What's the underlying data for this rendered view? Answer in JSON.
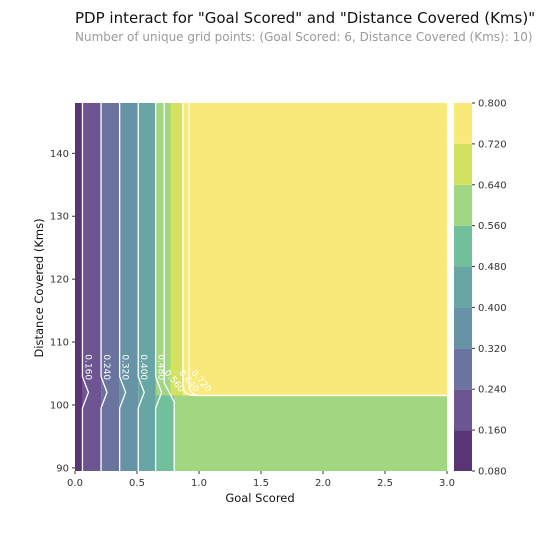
{
  "title": "PDP interact for \"Goal Scored\" and \"Distance Covered (Kms)\"",
  "subtitle": "Number of unique grid points: (Goal Scored: 6, Distance Covered (Kms): 10)",
  "chart_data": {
    "type": "heatmap",
    "subtype": "filled-contour",
    "xlabel": "Goal Scored",
    "ylabel": "Distance Covered (Kms)",
    "xlim": [
      0.0,
      3.0
    ],
    "ylim": [
      89.5,
      148
    ],
    "xticks": [
      "0.0",
      "0.5",
      "1.0",
      "1.5",
      "2.0",
      "2.5",
      "3.0"
    ],
    "xtick_values": [
      0.0,
      0.5,
      1.0,
      1.5,
      2.0,
      2.5,
      3.0
    ],
    "yticks": [
      "90",
      "100",
      "110",
      "120",
      "130",
      "140"
    ],
    "ytick_values": [
      90,
      100,
      110,
      120,
      130,
      140
    ],
    "colorbar": {
      "levels": [
        0.08,
        0.16,
        0.24,
        0.32,
        0.4,
        0.48,
        0.56,
        0.64,
        0.72,
        0.8
      ],
      "tick_labels": [
        "0.080",
        "0.160",
        "0.240",
        "0.320",
        "0.400",
        "0.480",
        "0.560",
        "0.640",
        "0.720",
        "0.800"
      ],
      "colors": [
        "#5a3576",
        "#6d5591",
        "#6b749f",
        "#6793a7",
        "#67a6a5",
        "#72bf9c",
        "#a2d781",
        "#d4e261",
        "#f9e979"
      ]
    },
    "contour_bands": [
      {
        "range": [
          0.08,
          0.16
        ],
        "x_from": 0.0,
        "x_to": 0.06
      },
      {
        "range": [
          0.16,
          0.24
        ],
        "x_from": 0.06,
        "x_to": 0.21
      },
      {
        "range": [
          0.24,
          0.32
        ],
        "x_from": 0.21,
        "x_to": 0.36
      },
      {
        "range": [
          0.32,
          0.4
        ],
        "x_from": 0.36,
        "x_to": 0.51
      },
      {
        "range": [
          0.4,
          0.48
        ],
        "x_from": 0.51,
        "x_to": 0.65
      },
      {
        "range": [
          0.48,
          0.56
        ],
        "x_from": 0.65,
        "x_to": 0.8
      },
      {
        "range": [
          0.56,
          0.64
        ],
        "x_from": 0.8,
        "x_to": 3.0,
        "y_to": 101.5
      },
      {
        "range": [
          0.56,
          0.64
        ],
        "x_from": 0.65,
        "x_to": 0.77,
        "y_from": 101.5
      },
      {
        "range": [
          0.64,
          0.72
        ],
        "x_from": 0.77,
        "x_to": 0.87,
        "y_from": 101.5
      },
      {
        "range": [
          0.72,
          0.8
        ],
        "x_from": 0.87,
        "x_to": 3.0,
        "y_from": 101.5
      }
    ],
    "contour_lines": [
      {
        "label": "0.160",
        "x": 0.06
      },
      {
        "label": "0.240",
        "x": 0.21
      },
      {
        "label": "0.320",
        "x": 0.36
      },
      {
        "label": "0.400",
        "x": 0.51
      },
      {
        "label": "0.480",
        "x": 0.65
      },
      {
        "label": "0.560",
        "x": 0.8
      },
      {
        "label": "0.640",
        "x": 0.87
      },
      {
        "label": "0.720",
        "x": 0.92
      }
    ]
  }
}
